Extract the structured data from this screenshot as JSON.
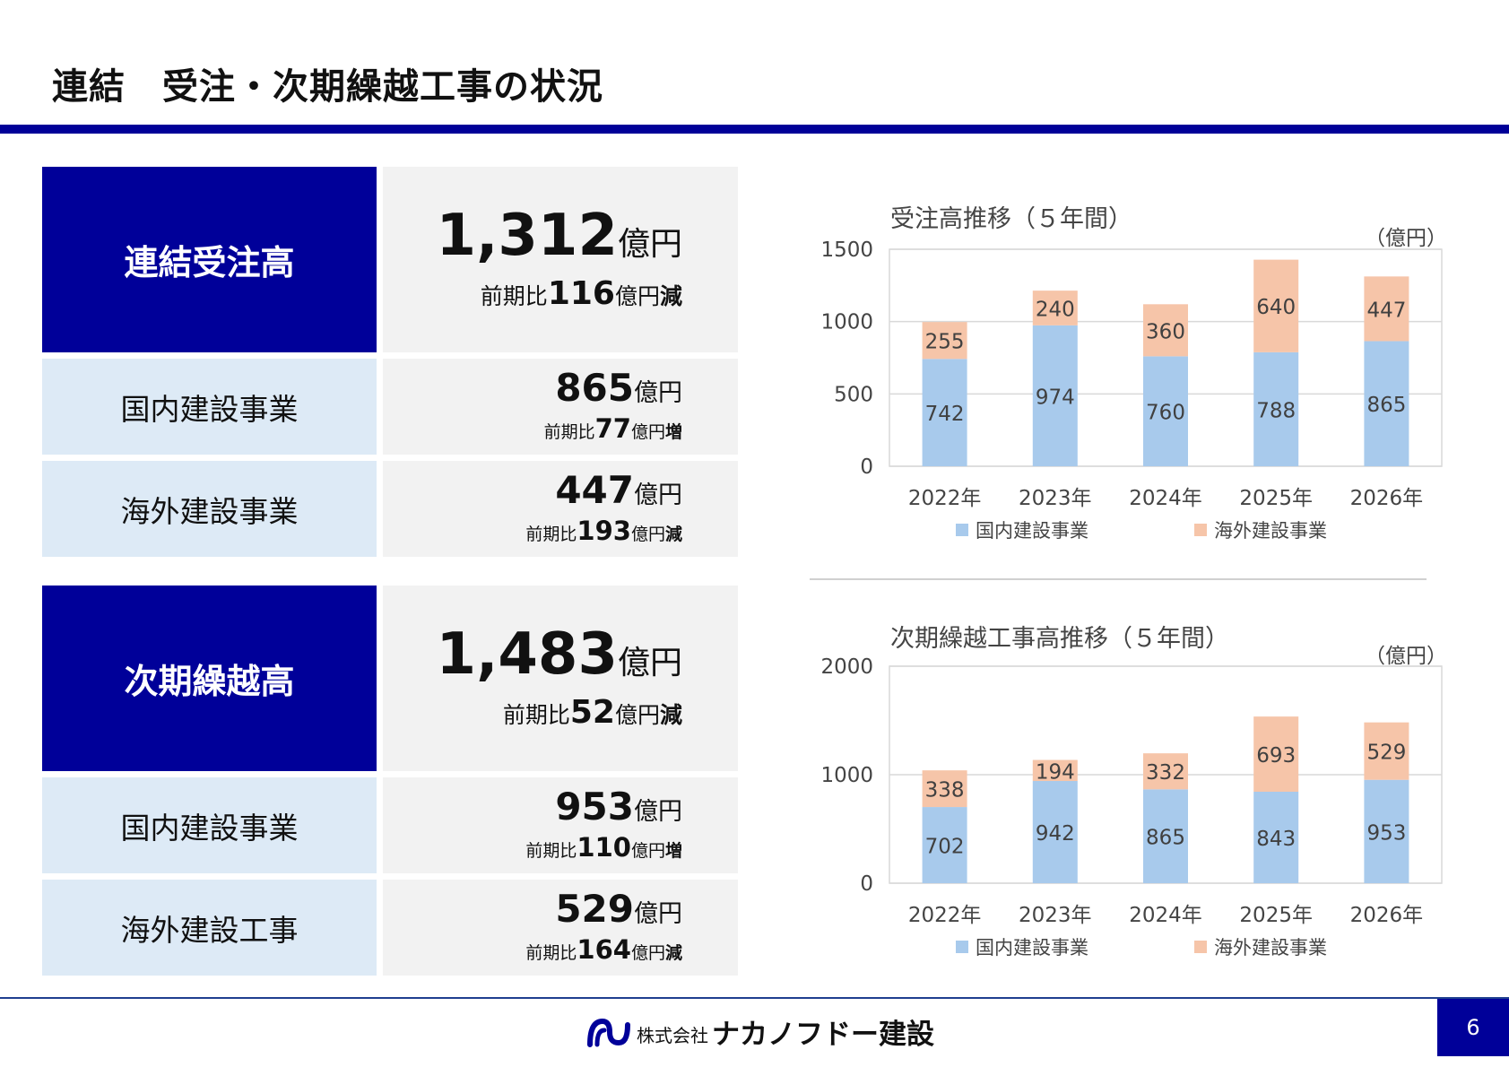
{
  "title": "連結　受注・次期繰越工事の状況",
  "orders": {
    "header": "連結受注高",
    "total": {
      "value": "1,312",
      "unit": "億円",
      "cmp_prefix": "前期比",
      "cmp_value": "116",
      "cmp_unit": "億円",
      "cmp_dir": "減"
    },
    "rows": [
      {
        "label": "国内建設事業",
        "value": "865",
        "unit": "億円",
        "cmp_prefix": "前期比",
        "cmp_value": "77",
        "cmp_unit": "億円",
        "cmp_dir": "増"
      },
      {
        "label": "海外建設事業",
        "value": "447",
        "unit": "億円",
        "cmp_prefix": "前期比",
        "cmp_value": "193",
        "cmp_unit": "億円",
        "cmp_dir": "減"
      }
    ]
  },
  "backlog": {
    "header": "次期繰越高",
    "total": {
      "value": "1,483",
      "unit": "億円",
      "cmp_prefix": "前期比",
      "cmp_value": "52",
      "cmp_unit": "億円",
      "cmp_dir": "減"
    },
    "rows": [
      {
        "label": "国内建設事業",
        "value": "953",
        "unit": "億円",
        "cmp_prefix": "前期比",
        "cmp_value": "110",
        "cmp_unit": "億円",
        "cmp_dir": "増"
      },
      {
        "label": "海外建設工事",
        "value": "529",
        "unit": "億円",
        "cmp_prefix": "前期比",
        "cmp_value": "164",
        "cmp_unit": "億円",
        "cmp_dir": "減"
      }
    ]
  },
  "chart_data": [
    {
      "type": "bar",
      "stacked": true,
      "title": "受注高推移（５年間）",
      "unit_label": "（億円）",
      "categories": [
        "2022年",
        "2023年",
        "2024年",
        "2025年",
        "2026年"
      ],
      "series": [
        {
          "name": "国内建設事業",
          "color": "#a8caec",
          "values": [
            742,
            974,
            760,
            788,
            865
          ]
        },
        {
          "name": "海外建設事業",
          "color": "#f6c5a9",
          "values": [
            255,
            240,
            360,
            640,
            447
          ]
        }
      ],
      "ylim": [
        0,
        1500
      ],
      "yticks": [
        0,
        500,
        1000,
        1500
      ],
      "grid": true,
      "legend": "bottom"
    },
    {
      "type": "bar",
      "stacked": true,
      "title": "次期繰越工事高推移（５年間）",
      "unit_label": "（億円）",
      "categories": [
        "2022年",
        "2023年",
        "2024年",
        "2025年",
        "2026年"
      ],
      "series": [
        {
          "name": "国内建設事業",
          "color": "#a8caec",
          "values": [
            702,
            942,
            865,
            843,
            953
          ]
        },
        {
          "name": "海外建設事業",
          "color": "#f6c5a9",
          "values": [
            338,
            194,
            332,
            693,
            529
          ]
        }
      ],
      "ylim": [
        0,
        2000
      ],
      "yticks": [
        0,
        1000,
        2000
      ],
      "grid": true,
      "legend": "bottom"
    }
  ],
  "footer": {
    "company_prefix": "株式会社",
    "company_name": "ナカノフドー建設",
    "page": "6"
  },
  "colors": {
    "primary": "#000099",
    "light_row": "#ddeaf6",
    "value_bg": "#f2f2f2"
  }
}
